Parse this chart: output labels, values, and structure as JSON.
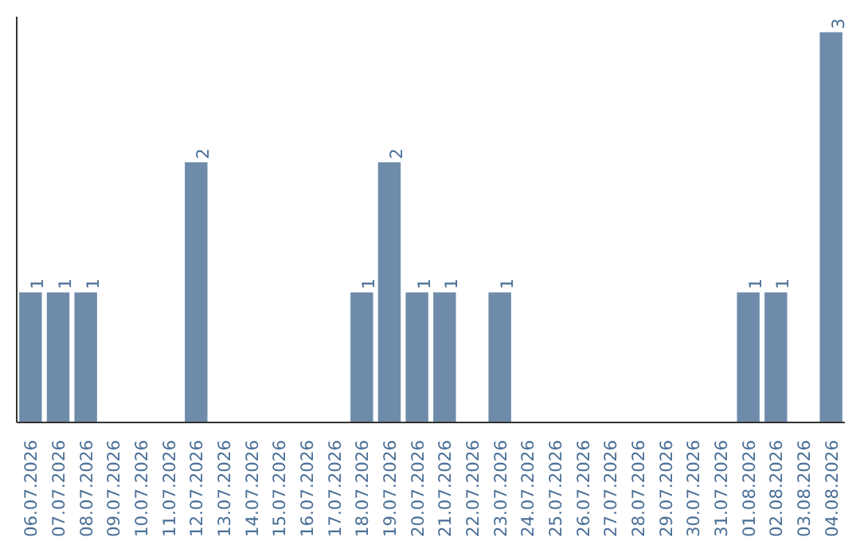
{
  "chart_data": {
    "type": "bar",
    "categories": [
      "06.07.2026",
      "07.07.2026",
      "08.07.2026",
      "09.07.2026",
      "10.07.2026",
      "11.07.2026",
      "12.07.2026",
      "13.07.2026",
      "14.07.2026",
      "15.07.2026",
      "16.07.2026",
      "17.07.2026",
      "18.07.2026",
      "19.07.2026",
      "20.07.2026",
      "21.07.2026",
      "22.07.2026",
      "23.07.2026",
      "24.07.2026",
      "25.07.2026",
      "26.07.2026",
      "27.07.2026",
      "28.07.2026",
      "29.07.2026",
      "30.07.2026",
      "31.07.2026",
      "01.08.2026",
      "02.08.2026",
      "03.08.2026",
      "04.08.2026"
    ],
    "values": [
      1,
      1,
      1,
      0,
      0,
      0,
      2,
      0,
      0,
      0,
      0,
      0,
      1,
      2,
      1,
      1,
      0,
      1,
      0,
      0,
      0,
      0,
      0,
      0,
      0,
      0,
      1,
      1,
      0,
      3
    ],
    "value_labels": [
      "1",
      "1",
      "1",
      null,
      null,
      null,
      "2",
      null,
      null,
      null,
      null,
      null,
      "1",
      "2",
      "1",
      "1",
      null,
      "1",
      null,
      null,
      null,
      null,
      null,
      null,
      null,
      null,
      "1",
      "1",
      null,
      "3"
    ],
    "color": "#6e8caa",
    "ylim": [
      0,
      3.12
    ],
    "grid": false,
    "tick_labels": "x"
  }
}
